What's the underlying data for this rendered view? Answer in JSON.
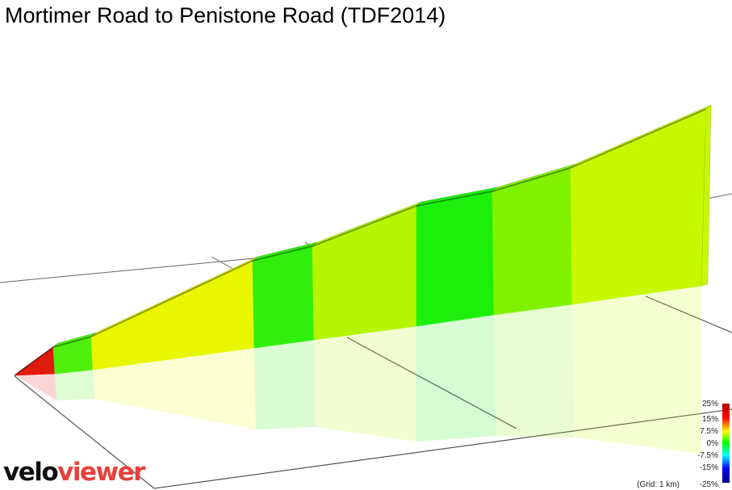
{
  "page": {
    "title": "Mortimer Road to Penistone Road (TDF2014)"
  },
  "brand": {
    "part1": "velo",
    "part2": "viewer",
    "colors": {
      "part1": "#111111",
      "part2": "#e8403a"
    }
  },
  "legend": {
    "labels": [
      "25%",
      "15%",
      "7.5%",
      "0%",
      "-7.5%",
      "-15%",
      "-25%"
    ],
    "grid_note": "(Grid: 1 km)",
    "colors": [
      "#b00000",
      "#ff0000",
      "#ffff00",
      "#00ff00",
      "#00ffff",
      "#0000ff",
      "#000080"
    ]
  },
  "chart_data": {
    "type": "area",
    "subtype": "3d-elevation-profile",
    "title": "Mortimer Road to Penistone Road (TDF2014)",
    "x_unit": "km",
    "grid_spacing_km": 1,
    "colorscale_grade_percent": [
      25,
      15,
      7.5,
      0,
      -7.5,
      -15,
      -25
    ],
    "segments": [
      {
        "index": 1,
        "grade_percent": 14.0,
        "color": "#e01b0e"
      },
      {
        "index": 2,
        "grade_percent": 3.0,
        "color": "#4ef00c"
      },
      {
        "index": 3,
        "grade_percent": 6.0,
        "color": "#e8f700"
      },
      {
        "index": 4,
        "grade_percent": 2.0,
        "color": "#31ef0c"
      },
      {
        "index": 5,
        "grade_percent": 4.0,
        "color": "#b5f500"
      },
      {
        "index": 6,
        "grade_percent": 1.0,
        "color": "#1cf00a"
      },
      {
        "index": 7,
        "grade_percent": 3.0,
        "color": "#80f200"
      },
      {
        "index": 8,
        "grade_percent": 4.5,
        "color": "#c7f800"
      }
    ]
  }
}
